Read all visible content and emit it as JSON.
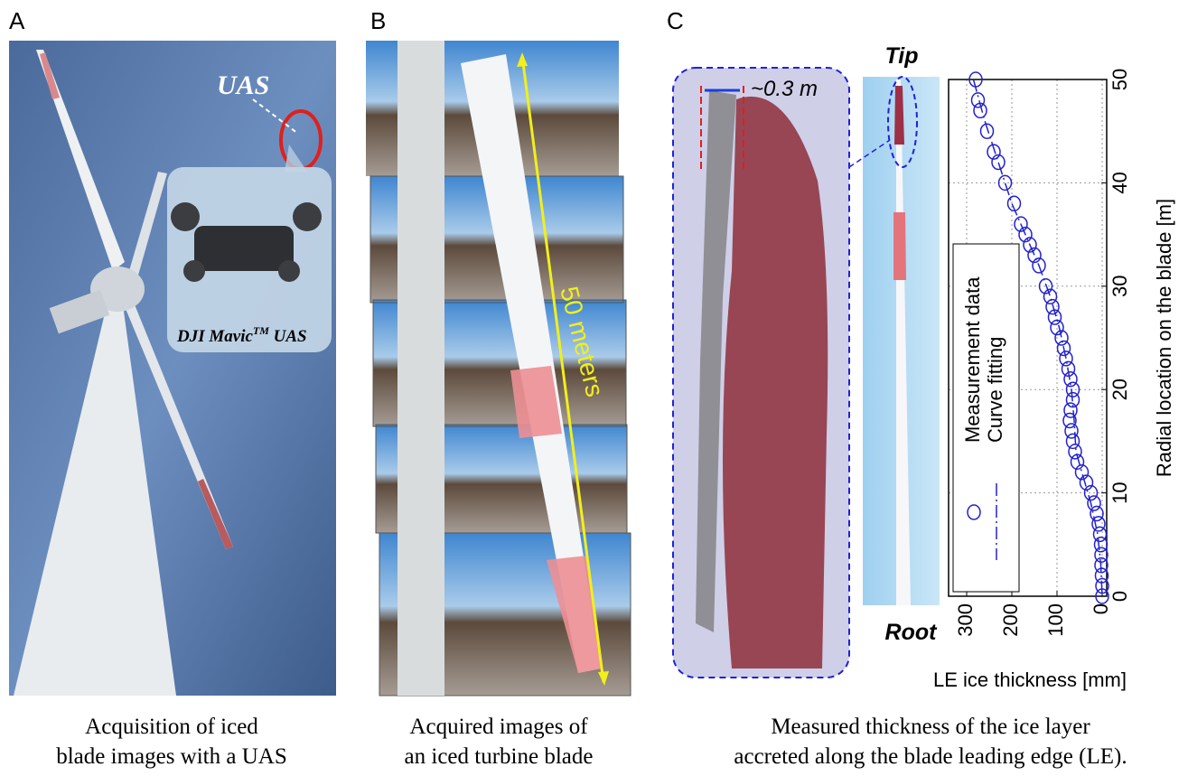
{
  "panels": [
    {
      "label": "A",
      "caption": [
        "Acquisition of iced",
        "blade images with a UAS"
      ],
      "uas": "UAS",
      "drone_name": "DJI Mavic",
      "drone_sup": "TM",
      "drone_suffix": " UAS"
    },
    {
      "label": "B",
      "caption": [
        "Acquired images of",
        "an iced turbine blade"
      ],
      "length": "50 meters"
    },
    {
      "label": "C",
      "caption": [
        "Measured thickness of the ice layer",
        "accreted along the blade leading edge (LE)."
      ],
      "width": "~0.3 m",
      "tip": "Tip",
      "root": "Root"
    }
  ],
  "chart_data": {
    "type": "scatter",
    "x_label": "LE ice thickness [mm]",
    "y_label": "Radial location on the blade [m]",
    "xlim": [
      340,
      -10
    ],
    "ylim": [
      0,
      50
    ],
    "xticks": [
      300,
      200,
      100,
      0
    ],
    "yticks": [
      0,
      10,
      20,
      30,
      40,
      50
    ],
    "grid": true,
    "series": [
      {
        "name": "Measurement data",
        "color": "#2222cc",
        "marker": "circle",
        "x": [
          280,
          275,
          270,
          255,
          240,
          230,
          215,
          195,
          180,
          170,
          160,
          150,
          140,
          125,
          115,
          110,
          105,
          100,
          90,
          85,
          80,
          75,
          70,
          65,
          65,
          70,
          72,
          68,
          65,
          60,
          55,
          45,
          35,
          25,
          18,
          12,
          8,
          5,
          3,
          2,
          2,
          1,
          0,
          0
        ],
        "values": [
          50,
          48,
          47,
          45,
          43,
          42,
          40,
          38,
          36,
          35,
          34,
          33,
          32,
          30,
          29,
          28,
          27,
          26,
          25,
          24,
          23,
          22,
          21,
          20,
          19,
          18,
          17,
          16,
          15,
          14,
          13,
          12,
          11,
          10,
          9,
          8,
          7,
          6,
          5,
          4,
          3,
          2,
          1,
          0
        ]
      },
      {
        "name": "Curve fitting",
        "color": "#2222cc",
        "marker": "dashdot",
        "x": [
          285,
          260,
          230,
          200,
          170,
          140,
          115,
          95,
          80,
          68,
          62,
          58,
          45,
          25,
          10,
          3,
          0
        ],
        "values": [
          50,
          46,
          42,
          38,
          35,
          32,
          29,
          26,
          23,
          20,
          17,
          14,
          12,
          9,
          6,
          3,
          0
        ]
      }
    ]
  }
}
